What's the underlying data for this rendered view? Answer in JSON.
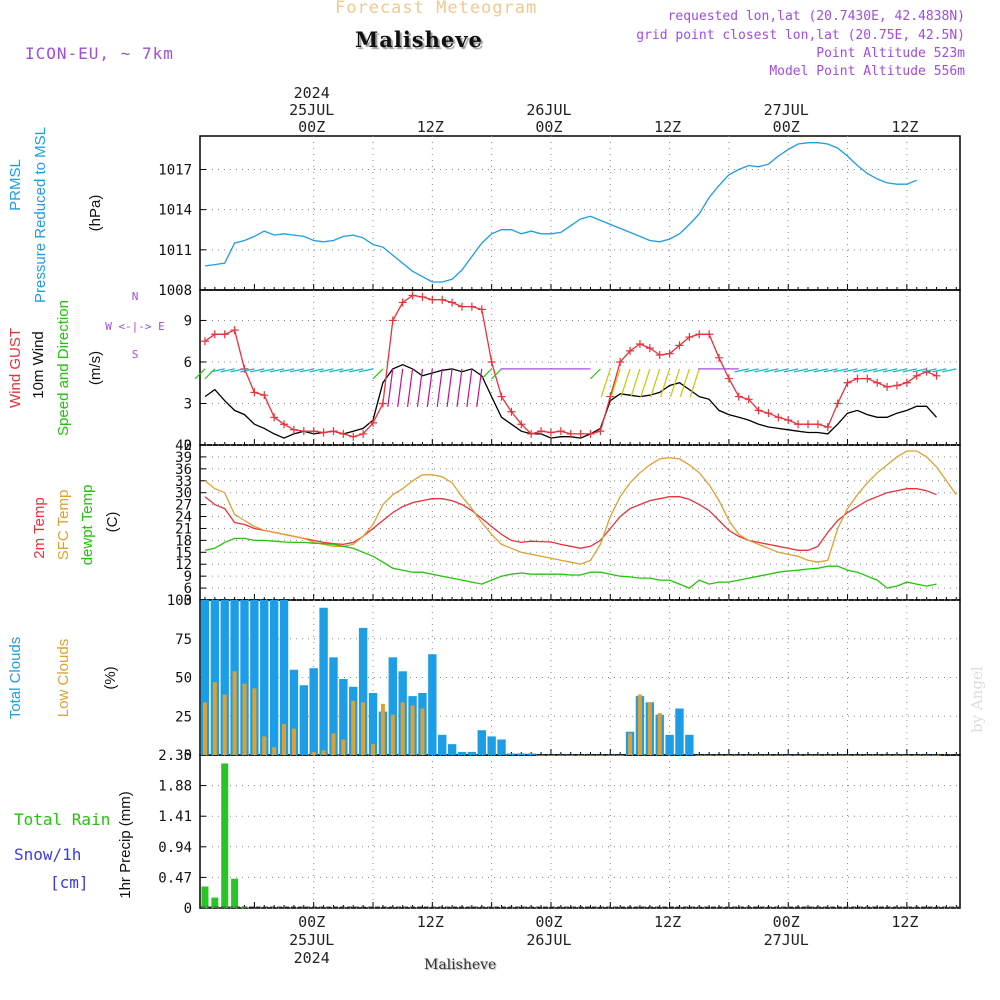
{
  "header": {
    "title": "Forecast Meteogram",
    "location": "Malisheve",
    "model": "ICON-EU, ~ 7km",
    "requested": "requested lon,lat (20.7430E, 42.4838N)",
    "grid_point": "grid point closest lon,lat (20.75E, 42.5N)",
    "point_altitude": "Point Altitude 523m",
    "model_altitude": "Model Point Altitude 556m"
  },
  "footer": {
    "location": "Malisheve",
    "watermark": "by Angel"
  },
  "colors": {
    "title": "#f0c890",
    "purple": "#a04ce0",
    "blue": "#1c9de6",
    "red": "#e8323c",
    "black": "#000000",
    "green": "#22c40a",
    "orange": "#e0a030",
    "dkgreen": "#28c428",
    "snow_blue": "#3a3ae8",
    "magenta": "#c0109a",
    "yellow": "#c8c800",
    "cyan": "#10b8c8"
  },
  "time_axis": {
    "top_labels": [
      {
        "hour": 0,
        "lines": [
          "2024",
          "25JUL",
          "00Z"
        ]
      },
      {
        "hour": 12,
        "lines": [
          "12Z"
        ]
      },
      {
        "hour": 24,
        "lines": [
          "26JUL",
          "00Z"
        ]
      },
      {
        "hour": 36,
        "lines": [
          "12Z"
        ]
      },
      {
        "hour": 48,
        "lines": [
          "27JUL",
          "00Z"
        ]
      },
      {
        "hour": 60,
        "lines": [
          "12Z"
        ]
      }
    ],
    "bottom_labels": [
      {
        "hour": 0,
        "lines": [
          "00Z",
          "25JUL",
          "2024"
        ]
      },
      {
        "hour": 12,
        "lines": [
          "12Z"
        ]
      },
      {
        "hour": 24,
        "lines": [
          "00Z",
          "26JUL"
        ]
      },
      {
        "hour": 36,
        "lines": [
          "12Z"
        ]
      },
      {
        "hour": 48,
        "lines": [
          "00Z",
          "27JUL"
        ]
      },
      {
        "hour": 60,
        "lines": [
          "12Z"
        ]
      }
    ]
  },
  "chart_data": [
    {
      "type": "line",
      "title": "PRMSL",
      "ylabel_lines": [
        "PRMSL",
        "Pressure Reduced to MSL",
        "(hPa)"
      ],
      "ylim": [
        1008,
        1019.5
      ],
      "yticks": [
        1008,
        1011,
        1014,
        1017
      ],
      "x_hours": [
        -11,
        -10,
        -9,
        -8,
        -7,
        -6,
        -5,
        -4,
        -3,
        -2,
        -1,
        0,
        1,
        2,
        3,
        4,
        5,
        6,
        7,
        8,
        9,
        10,
        11,
        12,
        13,
        14,
        15,
        16,
        17,
        18,
        19,
        20,
        21,
        22,
        23,
        24,
        25,
        26,
        27,
        28,
        29,
        30,
        31,
        32,
        33,
        34,
        35,
        36,
        37,
        38,
        39,
        40,
        41,
        42,
        43,
        44,
        45,
        46,
        47,
        48,
        49,
        50,
        51,
        52,
        53,
        54,
        55,
        56,
        57,
        58,
        59,
        60,
        61,
        62,
        63,
        64,
        65
      ],
      "series": [
        {
          "name": "PRMSL",
          "color": "#1c9de6",
          "values": [
            1009.8,
            1009.9,
            1010.0,
            1011.5,
            1011.7,
            1012.0,
            1012.4,
            1012.1,
            1012.2,
            1012.1,
            1012.0,
            1011.7,
            1011.6,
            1011.7,
            1012.0,
            1012.1,
            1011.9,
            1011.4,
            1011.2,
            1010.6,
            1010.0,
            1009.4,
            1009.0,
            1008.6,
            1008.6,
            1008.8,
            1009.5,
            1010.5,
            1011.5,
            1012.2,
            1012.5,
            1012.5,
            1012.2,
            1012.4,
            1012.2,
            1012.2,
            1012.3,
            1012.8,
            1013.3,
            1013.5,
            1013.2,
            1012.9,
            1012.6,
            1012.3,
            1012.0,
            1011.7,
            1011.6,
            1011.8,
            1012.2,
            1012.9,
            1013.7,
            1014.9,
            1015.8,
            1016.6,
            1017.0,
            1017.3,
            1017.2,
            1017.4,
            1018.0,
            1018.5,
            1018.9,
            1019.0,
            1019.0,
            1018.9,
            1018.6,
            1018.0,
            1017.3,
            1016.7,
            1016.3,
            1016.0,
            1015.9,
            1015.9,
            1016.2
          ]
        }
      ]
    },
    {
      "type": "line",
      "title": "Wind",
      "ylabel_lines": [
        "Wind GUST",
        "10m Wind",
        "Speed and Direction",
        "(m/s)"
      ],
      "compass_labels": [
        "N",
        "W <-|-> E",
        "S"
      ],
      "ylim": [
        0,
        11.2
      ],
      "yticks": [
        0,
        3,
        6,
        9
      ],
      "x_hours": [
        -11,
        -10,
        -9,
        -8,
        -7,
        -6,
        -5,
        -4,
        -3,
        -2,
        -1,
        0,
        1,
        2,
        3,
        4,
        5,
        6,
        7,
        8,
        9,
        10,
        11,
        12,
        13,
        14,
        15,
        16,
        17,
        18,
        19,
        20,
        21,
        22,
        23,
        24,
        25,
        26,
        27,
        28,
        29,
        30,
        31,
        32,
        33,
        34,
        35,
        36,
        37,
        38,
        39,
        40,
        41,
        42,
        43,
        44,
        45,
        46,
        47,
        48,
        49,
        50,
        51,
        52,
        53,
        54,
        55,
        56,
        57,
        58,
        59,
        60,
        61,
        62,
        63,
        64,
        65
      ],
      "series": [
        {
          "name": "Wind GUST",
          "color": "#e8323c",
          "marker": "+",
          "values": [
            7.5,
            8.0,
            8.0,
            8.3,
            5.5,
            3.8,
            3.6,
            2.0,
            1.5,
            1.1,
            1.0,
            1.0,
            0.9,
            1.0,
            0.8,
            0.6,
            0.8,
            1.6,
            3.0,
            9.0,
            10.3,
            10.8,
            10.7,
            10.5,
            10.5,
            10.3,
            10.0,
            10.0,
            9.8,
            6.0,
            3.5,
            2.4,
            1.5,
            0.8,
            1.0,
            0.9,
            1.0,
            0.8,
            0.8,
            0.8,
            1.0,
            3.5,
            6.0,
            6.8,
            7.3,
            7.0,
            6.5,
            6.6,
            7.2,
            7.8,
            8.0,
            8.0,
            6.3,
            4.8,
            3.5,
            3.3,
            2.5,
            2.3,
            2.0,
            1.8,
            1.5,
            1.5,
            1.5,
            1.3,
            3.0,
            4.5,
            4.8,
            4.8,
            4.5,
            4.2,
            4.3,
            4.5,
            5.0,
            5.3,
            5.0
          ]
        },
        {
          "name": "10m Wind",
          "color": "#000000",
          "values": [
            3.5,
            4.0,
            3.2,
            2.5,
            2.2,
            1.5,
            1.2,
            0.8,
            0.5,
            0.8,
            1.0,
            0.8,
            0.9,
            1.0,
            0.8,
            1.0,
            1.2,
            1.8,
            4.5,
            5.5,
            5.8,
            5.5,
            5.0,
            5.2,
            5.4,
            5.5,
            5.3,
            5.5,
            5.0,
            3.5,
            2.0,
            1.5,
            1.0,
            0.8,
            0.8,
            0.5,
            0.6,
            0.6,
            0.5,
            0.8,
            1.2,
            3.2,
            3.7,
            3.6,
            3.5,
            3.6,
            3.8,
            4.3,
            4.5,
            4.0,
            3.5,
            3.3,
            2.5,
            2.2,
            2.0,
            1.8,
            1.5,
            1.3,
            1.2,
            1.1,
            1.0,
            0.9,
            0.9,
            0.8,
            1.5,
            2.3,
            2.5,
            2.2,
            2.0,
            2.0,
            2.3,
            2.5,
            2.8,
            2.8,
            2.0
          ]
        }
      ]
    },
    {
      "type": "line",
      "title": "Temperature",
      "ylabel_lines": [
        "2m Temp",
        "SFC Temp",
        "dewpt Temp",
        "(C)"
      ],
      "ylim": [
        3,
        42
      ],
      "yticks": [
        3,
        6,
        9,
        12,
        15,
        18,
        21,
        24,
        27,
        30,
        33,
        36,
        39,
        42
      ],
      "x_hours": [
        -11,
        -10,
        -9,
        -8,
        -7,
        -6,
        -5,
        -4,
        -3,
        -2,
        -1,
        0,
        1,
        2,
        3,
        4,
        5,
        6,
        7,
        8,
        9,
        10,
        11,
        12,
        13,
        14,
        15,
        16,
        17,
        18,
        19,
        20,
        21,
        22,
        23,
        24,
        25,
        26,
        27,
        28,
        29,
        30,
        31,
        32,
        33,
        34,
        35,
        36,
        37,
        38,
        39,
        40,
        41,
        42,
        43,
        44,
        45,
        46,
        47,
        48,
        49,
        50,
        51,
        52,
        53,
        54,
        55,
        56,
        57,
        58,
        59,
        60,
        61,
        62,
        63,
        64,
        65
      ],
      "series": [
        {
          "name": "2m Temp",
          "color": "#e8323c",
          "values": [
            29,
            27,
            26,
            22.5,
            22,
            21,
            20.5,
            20,
            19.5,
            19,
            18.5,
            18,
            17.5,
            17.2,
            17,
            17.5,
            19,
            21,
            23,
            25,
            26.5,
            27.5,
            28,
            28.5,
            28.5,
            28,
            27,
            25.5,
            23.5,
            21.5,
            19.5,
            18,
            17.5,
            17.8,
            17.7,
            17.6,
            17,
            16.5,
            16,
            16.5,
            18,
            21,
            24,
            26,
            27,
            28,
            28.5,
            29,
            29,
            28.3,
            27,
            25.5,
            23,
            20.5,
            19,
            18,
            17.5,
            17,
            16.5,
            16,
            15.5,
            15.5,
            16.5,
            20,
            23,
            25,
            26.5,
            28,
            29,
            30,
            30.5,
            31,
            31,
            30.5,
            29.5
          ]
        },
        {
          "name": "SFC Temp",
          "color": "#e0a030",
          "values": [
            33,
            31,
            30,
            24.5,
            23,
            21.5,
            20.5,
            20,
            19.5,
            19,
            18.5,
            17.5,
            17,
            16.5,
            16.5,
            17,
            19,
            22,
            27,
            29.5,
            31,
            33,
            34.5,
            34.5,
            34,
            32.5,
            29,
            26,
            22.5,
            19.5,
            17,
            16,
            15,
            14.5,
            14,
            13.5,
            13,
            12.5,
            12,
            13,
            17,
            24,
            29,
            32.5,
            35,
            37,
            38.5,
            38.8,
            38.5,
            37,
            35,
            32,
            28,
            23,
            19.5,
            18,
            17,
            16,
            15,
            14.5,
            14,
            13,
            12.5,
            13,
            21,
            26,
            29.5,
            32.5,
            35,
            37,
            39,
            40.5,
            40.5,
            39,
            36.5,
            33,
            29.5
          ]
        },
        {
          "name": "dewpt Temp",
          "color": "#22c40a",
          "values": [
            15.5,
            16,
            17.5,
            18.5,
            18.5,
            18,
            18,
            17.8,
            17.6,
            17.5,
            17.5,
            17.3,
            17.2,
            17,
            16.5,
            16,
            15,
            14,
            12.5,
            11,
            10.5,
            10,
            10,
            9.5,
            9,
            8.5,
            8,
            7.5,
            7,
            8,
            9,
            9.5,
            9.8,
            9.5,
            9.5,
            9.5,
            9.5,
            9.3,
            9.3,
            10,
            10,
            9.5,
            9,
            8.8,
            8.5,
            8.5,
            8,
            8,
            7,
            6,
            8,
            7,
            7.5,
            7.5,
            8,
            8.5,
            9,
            9.5,
            10,
            10.3,
            10.5,
            10.8,
            11,
            11.5,
            11.5,
            10.5,
            10,
            9,
            8,
            6,
            6.5,
            7.5,
            7,
            6.5,
            7
          ]
        }
      ]
    },
    {
      "type": "bar",
      "title": "Clouds",
      "ylabel_lines": [
        "Total Clouds",
        "Low Clouds",
        "(%)"
      ],
      "ylim": [
        0,
        100
      ],
      "yticks": [
        0,
        25,
        50,
        75,
        100
      ],
      "x_hours": [
        -11,
        -10,
        -9,
        -8,
        -7,
        -6,
        -5,
        -4,
        -3,
        -2,
        -1,
        0,
        1,
        2,
        3,
        4,
        5,
        6,
        7,
        8,
        9,
        10,
        11,
        12,
        13,
        14,
        15,
        16,
        17,
        18,
        19,
        20,
        21,
        22,
        23,
        24,
        25,
        26,
        27,
        28,
        29,
        30,
        31,
        32,
        33,
        34,
        35,
        36,
        37,
        38,
        39,
        40,
        41,
        42,
        43,
        44,
        45,
        46,
        47,
        48,
        49,
        50,
        51,
        52,
        53,
        54,
        55,
        56,
        57,
        58,
        59,
        60,
        61,
        62,
        63,
        64,
        65
      ],
      "series": [
        {
          "name": "Total Clouds",
          "color": "#1c9de6",
          "values": [
            100,
            100,
            100,
            100,
            100,
            100,
            100,
            100,
            100,
            55,
            45,
            56,
            95,
            63,
            49,
            44,
            82,
            40,
            28,
            63,
            54,
            38,
            40,
            65,
            13,
            7,
            2,
            2,
            16,
            12,
            10,
            1,
            1,
            1,
            0,
            0,
            0,
            0,
            0,
            0,
            0,
            0,
            0,
            15,
            38,
            34,
            26,
            13,
            30,
            13,
            0,
            0,
            0,
            0,
            0,
            0,
            0,
            0,
            0,
            0,
            0,
            0,
            0,
            0,
            0,
            0,
            0,
            0,
            0,
            0,
            0,
            0,
            0,
            0,
            0
          ]
        },
        {
          "name": "Low Clouds",
          "color": "#e0a030",
          "values": [
            34,
            47,
            39,
            54,
            46,
            43,
            12,
            5,
            20,
            17,
            0,
            2,
            3,
            14,
            10,
            35,
            34,
            7,
            33,
            26,
            34,
            32,
            30,
            0,
            0,
            0,
            0,
            0,
            0,
            0,
            0,
            0,
            0,
            0,
            0,
            0,
            0,
            0,
            0,
            0,
            0,
            0,
            0,
            14,
            39,
            34,
            27,
            0,
            0,
            0,
            0,
            0,
            0,
            0,
            0,
            0,
            0,
            0,
            0,
            0,
            0,
            0,
            0,
            0,
            0,
            0,
            0,
            0,
            0,
            0,
            0,
            0,
            0,
            0,
            0
          ]
        }
      ]
    },
    {
      "type": "bar",
      "title": "Precipitation",
      "ylabel_lines": [
        "1hr Precip (mm)"
      ],
      "legend_lines": [
        "Total  Rain",
        "Snow/1h",
        "[cm]"
      ],
      "ylim": [
        0,
        2.35
      ],
      "yticks": [
        0,
        0.47,
        0.94,
        1.41,
        1.88,
        2.35
      ],
      "ytick_labels": [
        "0",
        "0.47",
        "0.94",
        "1.41",
        "1.88",
        "2.35"
      ],
      "x_hours": [
        -11,
        -10,
        -9,
        -8,
        -7
      ],
      "series": [
        {
          "name": "Total Rain",
          "color": "#28c428",
          "values": [
            0.33,
            0.16,
            2.22,
            0.45,
            0.02
          ]
        }
      ]
    }
  ]
}
